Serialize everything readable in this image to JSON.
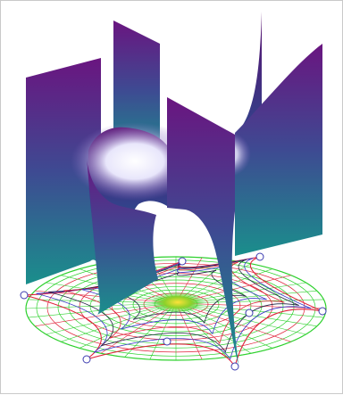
{
  "figure": {
    "colors": {
      "background": "#ffffff",
      "frame": "#c9c9c9",
      "surface_top": "#6a1580",
      "surface_mid": "#3e4a92",
      "surface_bottom": "#1a8f8c",
      "highlight": "#f4f2ff",
      "grid_green": "#2fd12f",
      "grid_red": "#e0223a",
      "grid_blue": "#3a3ac8",
      "grid_dark": "#222244",
      "node_stroke": "#3b3bb0"
    }
  }
}
